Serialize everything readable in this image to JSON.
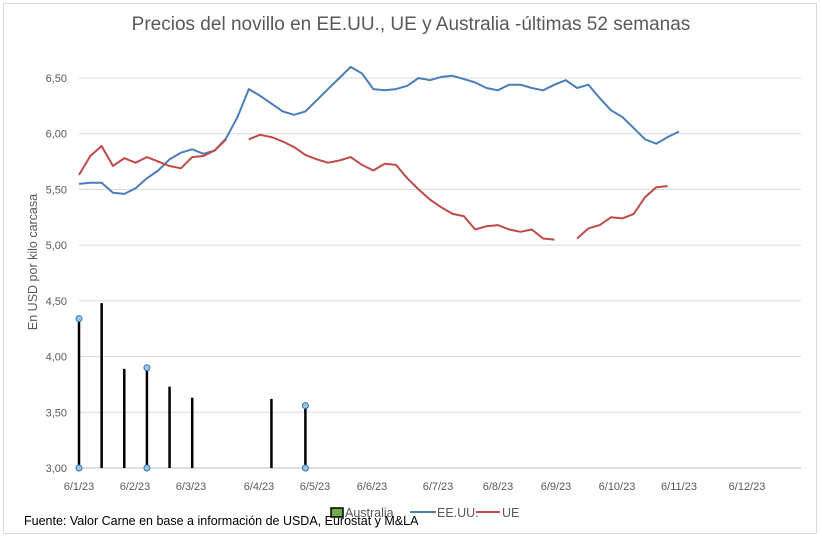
{
  "chart_data": {
    "type": "line",
    "title": "Precios del novillo en EE.UU., UE y Australia -últimas 52 semanas",
    "ylabel": "En USD por kilo carcasa",
    "xlabel": "",
    "ylim": [
      3.0,
      6.75
    ],
    "yticks": [
      "3,00",
      "3,50",
      "4,00",
      "4,50",
      "5,00",
      "5,50",
      "6,00",
      "6,50"
    ],
    "yticks_values": [
      3.0,
      3.5,
      4.0,
      4.5,
      5.0,
      5.5,
      6.0,
      6.5
    ],
    "x_tick_labels": [
      "6/1/23",
      "6/2/23",
      "6/3/23",
      "6/4/23",
      "6/5/23",
      "6/6/23",
      "6/7/23",
      "6/8/23",
      "6/9/23",
      "6/10/23",
      "6/11/23",
      "6/12/23"
    ],
    "grid": "horizontal",
    "legend_position": "bottom",
    "series": [
      {
        "name": "Australia",
        "kind": "hi-lo bars",
        "color": "#000000",
        "legend_color": "#70ad47",
        "points": [
          {
            "x": 0,
            "low": 3.0,
            "high": 4.34
          },
          {
            "x": 2,
            "low": 3.0,
            "high": 4.48
          },
          {
            "x": 4,
            "low": 3.0,
            "high": 3.89
          },
          {
            "x": 6,
            "low": 3.0,
            "high": 3.9
          },
          {
            "x": 8,
            "low": 3.0,
            "high": 3.73
          },
          {
            "x": 10,
            "low": 3.0,
            "high": 3.63
          },
          {
            "x": 17,
            "low": 3.0,
            "high": 3.62
          },
          {
            "x": 20,
            "low": 3.0,
            "high": 3.56
          }
        ]
      },
      {
        "name": "EE.UU.",
        "color": "#4a7ebb",
        "values": [
          5.55,
          5.56,
          5.56,
          5.47,
          5.46,
          5.51,
          5.6,
          5.67,
          5.77,
          5.83,
          5.86,
          5.82,
          5.85,
          5.96,
          6.15,
          6.4,
          6.34,
          6.27,
          6.2,
          6.17,
          6.2,
          6.3,
          6.4,
          6.5,
          6.6,
          6.54,
          6.4,
          6.39,
          6.4,
          6.43,
          6.5,
          6.48,
          6.51,
          6.52,
          6.49,
          6.46,
          6.41,
          6.39,
          6.44,
          6.44,
          6.41,
          6.39,
          6.44,
          6.48,
          6.41,
          6.44,
          6.32,
          6.21,
          6.15,
          6.05,
          5.95,
          5.91,
          5.97,
          6.02
        ]
      },
      {
        "name": "UE",
        "color": "#be4b48",
        "values": [
          5.63,
          5.8,
          5.89,
          5.71,
          5.78,
          5.74,
          5.79,
          5.75,
          5.71,
          5.69,
          5.79,
          5.8,
          5.85,
          5.95,
          null,
          5.95,
          5.99,
          5.97,
          5.93,
          5.88,
          5.81,
          5.77,
          5.74,
          5.76,
          5.79,
          5.72,
          5.67,
          5.73,
          5.72,
          5.6,
          5.5,
          5.41,
          5.34,
          5.28,
          5.26,
          5.14,
          5.17,
          5.18,
          5.14,
          5.12,
          5.14,
          5.06,
          5.05,
          null,
          5.06,
          5.15,
          5.18,
          5.25,
          5.24,
          5.28,
          5.43,
          5.52,
          5.53
        ]
      }
    ]
  },
  "source_text": "Fuente: Valor Carne en base a información de USDA, Eurostat y M&LA"
}
